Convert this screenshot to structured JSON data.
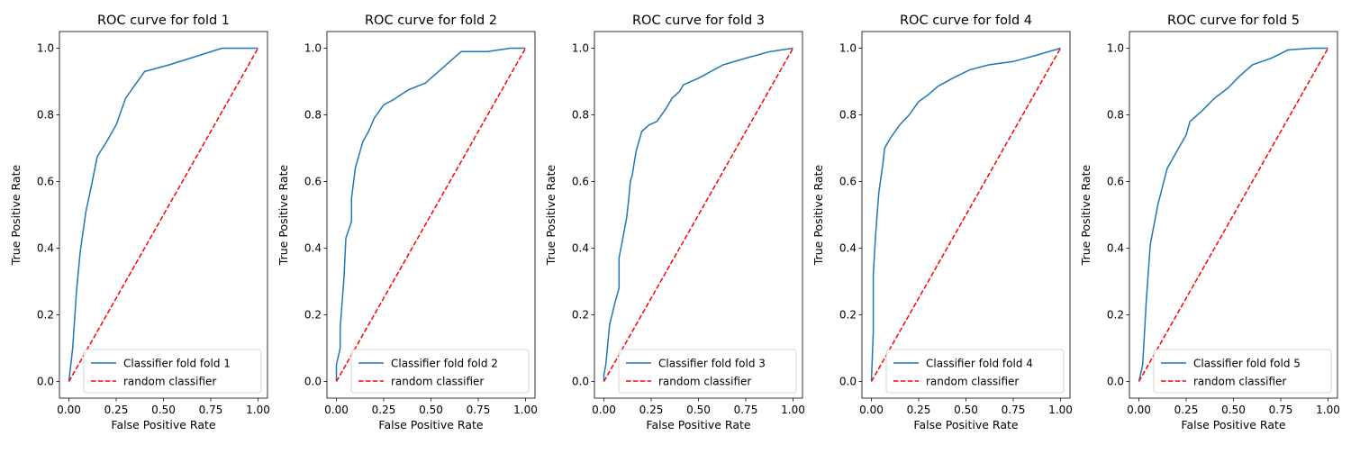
{
  "chart_data": [
    {
      "type": "line",
      "title": "ROC curve for fold 1",
      "xlabel": "False Positive Rate",
      "ylabel": "True Positive Rate",
      "xlim": [
        -0.05,
        1.05
      ],
      "ylim": [
        -0.05,
        1.05
      ],
      "xticks": [
        0.0,
        0.25,
        0.5,
        0.75,
        1.0
      ],
      "xtick_labels": [
        "0.00",
        "0.25",
        "0.50",
        "0.75",
        "1.00"
      ],
      "yticks": [
        0.0,
        0.2,
        0.4,
        0.6,
        0.8,
        1.0
      ],
      "ytick_labels": [
        "0.0",
        "0.2",
        "0.4",
        "0.6",
        "0.8",
        "1.0"
      ],
      "legend_position": "lower-right",
      "series": [
        {
          "name": "Classifier fold fold 1",
          "color": "#1f77b4",
          "style": "solid",
          "x": [
            0.0,
            0.02,
            0.04,
            0.06,
            0.09,
            0.12,
            0.15,
            0.2,
            0.25,
            0.3,
            0.35,
            0.4,
            0.53,
            0.67,
            0.81,
            0.9,
            1.0
          ],
          "y": [
            0.0,
            0.1,
            0.27,
            0.39,
            0.51,
            0.59,
            0.675,
            0.72,
            0.77,
            0.85,
            0.89,
            0.93,
            0.95,
            0.975,
            1.0,
            1.0,
            1.0
          ]
        },
        {
          "name": "random classifier",
          "color": "#ff0000",
          "style": "dashed",
          "x": [
            0.0,
            1.0
          ],
          "y": [
            0.0,
            1.0
          ]
        }
      ]
    },
    {
      "type": "line",
      "title": "ROC curve for fold 2",
      "xlabel": "False Positive Rate",
      "ylabel": "True Positive Rate",
      "xlim": [
        -0.05,
        1.05
      ],
      "ylim": [
        -0.05,
        1.05
      ],
      "xticks": [
        0.0,
        0.25,
        0.5,
        0.75,
        1.0
      ],
      "xtick_labels": [
        "0.00",
        "0.25",
        "0.50",
        "0.75",
        "1.00"
      ],
      "yticks": [
        0.0,
        0.2,
        0.4,
        0.6,
        0.8,
        1.0
      ],
      "ytick_labels": [
        "0.0",
        "0.2",
        "0.4",
        "0.6",
        "0.8",
        "1.0"
      ],
      "legend_position": "lower-right",
      "series": [
        {
          "name": "Classifier fold fold 2",
          "color": "#1f77b4",
          "style": "solid",
          "x": [
            0.0,
            0.0,
            0.02,
            0.02,
            0.04,
            0.05,
            0.08,
            0.08,
            0.1,
            0.11,
            0.14,
            0.17,
            0.2,
            0.25,
            0.3,
            0.38,
            0.47,
            0.57,
            0.66,
            0.8,
            0.92,
            1.0
          ],
          "y": [
            0.0,
            0.05,
            0.1,
            0.16,
            0.31,
            0.43,
            0.48,
            0.55,
            0.64,
            0.66,
            0.72,
            0.75,
            0.79,
            0.83,
            0.845,
            0.875,
            0.895,
            0.945,
            0.99,
            0.99,
            1.0,
            1.0
          ]
        },
        {
          "name": "random classifier",
          "color": "#ff0000",
          "style": "dashed",
          "x": [
            0.0,
            1.0
          ],
          "y": [
            0.0,
            1.0
          ]
        }
      ]
    },
    {
      "type": "line",
      "title": "ROC curve for fold 3",
      "xlabel": "False Positive Rate",
      "ylabel": "True Positive Rate",
      "xlim": [
        -0.05,
        1.05
      ],
      "ylim": [
        -0.05,
        1.05
      ],
      "xticks": [
        0.0,
        0.25,
        0.5,
        0.75,
        1.0
      ],
      "xtick_labels": [
        "0.00",
        "0.25",
        "0.50",
        "0.75",
        "1.00"
      ],
      "yticks": [
        0.0,
        0.2,
        0.4,
        0.6,
        0.8,
        1.0
      ],
      "ytick_labels": [
        "0.0",
        "0.2",
        "0.4",
        "0.6",
        "0.8",
        "1.0"
      ],
      "legend_position": "lower-right",
      "series": [
        {
          "name": "Classifier fold fold 3",
          "color": "#1f77b4",
          "style": "solid",
          "x": [
            0.0,
            0.0,
            0.01,
            0.03,
            0.06,
            0.08,
            0.08,
            0.1,
            0.12,
            0.13,
            0.14,
            0.15,
            0.17,
            0.2,
            0.24,
            0.28,
            0.33,
            0.36,
            0.4,
            0.42,
            0.5,
            0.63,
            0.75,
            0.88,
            1.0
          ],
          "y": [
            0.0,
            0.02,
            0.05,
            0.17,
            0.24,
            0.28,
            0.37,
            0.43,
            0.49,
            0.54,
            0.6,
            0.62,
            0.69,
            0.75,
            0.77,
            0.78,
            0.82,
            0.85,
            0.87,
            0.89,
            0.91,
            0.95,
            0.97,
            0.99,
            1.0
          ]
        },
        {
          "name": "random classifier",
          "color": "#ff0000",
          "style": "dashed",
          "x": [
            0.0,
            1.0
          ],
          "y": [
            0.0,
            1.0
          ]
        }
      ]
    },
    {
      "type": "line",
      "title": "ROC curve for fold 4",
      "xlabel": "False Positive Rate",
      "ylabel": "True Positive Rate",
      "xlim": [
        -0.05,
        1.05
      ],
      "ylim": [
        -0.05,
        1.05
      ],
      "xticks": [
        0.0,
        0.25,
        0.5,
        0.75,
        1.0
      ],
      "xtick_labels": [
        "0.00",
        "0.25",
        "0.50",
        "0.75",
        "1.00"
      ],
      "yticks": [
        0.0,
        0.2,
        0.4,
        0.6,
        0.8,
        1.0
      ],
      "ytick_labels": [
        "0.0",
        "0.2",
        "0.4",
        "0.6",
        "0.8",
        "1.0"
      ],
      "legend_position": "lower-right",
      "series": [
        {
          "name": "Classifier fold fold 4",
          "color": "#1f77b4",
          "style": "solid",
          "x": [
            0.0,
            0.01,
            0.01,
            0.02,
            0.03,
            0.04,
            0.06,
            0.07,
            0.1,
            0.15,
            0.2,
            0.25,
            0.3,
            0.35,
            0.43,
            0.52,
            0.62,
            0.75,
            0.88,
            1.0
          ],
          "y": [
            0.0,
            0.15,
            0.32,
            0.42,
            0.5,
            0.57,
            0.65,
            0.7,
            0.73,
            0.77,
            0.8,
            0.84,
            0.86,
            0.885,
            0.91,
            0.935,
            0.95,
            0.96,
            0.98,
            1.0
          ]
        },
        {
          "name": "random classifier",
          "color": "#ff0000",
          "style": "dashed",
          "x": [
            0.0,
            1.0
          ],
          "y": [
            0.0,
            1.0
          ]
        }
      ]
    },
    {
      "type": "line",
      "title": "ROC curve for fold 5",
      "xlabel": "False Positive Rate",
      "ylabel": "True Positive Rate",
      "xlim": [
        -0.05,
        1.05
      ],
      "ylim": [
        -0.05,
        1.05
      ],
      "xticks": [
        0.0,
        0.25,
        0.5,
        0.75,
        1.0
      ],
      "xtick_labels": [
        "0.00",
        "0.25",
        "0.50",
        "0.75",
        "1.00"
      ],
      "yticks": [
        0.0,
        0.2,
        0.4,
        0.6,
        0.8,
        1.0
      ],
      "ytick_labels": [
        "0.0",
        "0.2",
        "0.4",
        "0.6",
        "0.8",
        "1.0"
      ],
      "legend_position": "lower-right",
      "series": [
        {
          "name": "Classifier fold fold 5",
          "color": "#1f77b4",
          "style": "solid",
          "x": [
            0.0,
            0.02,
            0.04,
            0.05,
            0.06,
            0.1,
            0.15,
            0.2,
            0.25,
            0.27,
            0.3,
            0.33,
            0.4,
            0.47,
            0.53,
            0.6,
            0.7,
            0.79,
            0.92,
            1.0
          ],
          "y": [
            0.0,
            0.05,
            0.25,
            0.33,
            0.41,
            0.53,
            0.64,
            0.69,
            0.74,
            0.78,
            0.795,
            0.81,
            0.85,
            0.88,
            0.915,
            0.95,
            0.97,
            0.995,
            1.0,
            1.0
          ]
        },
        {
          "name": "random classifier",
          "color": "#ff0000",
          "style": "dashed",
          "x": [
            0.0,
            1.0
          ],
          "y": [
            0.0,
            1.0
          ]
        }
      ]
    }
  ]
}
